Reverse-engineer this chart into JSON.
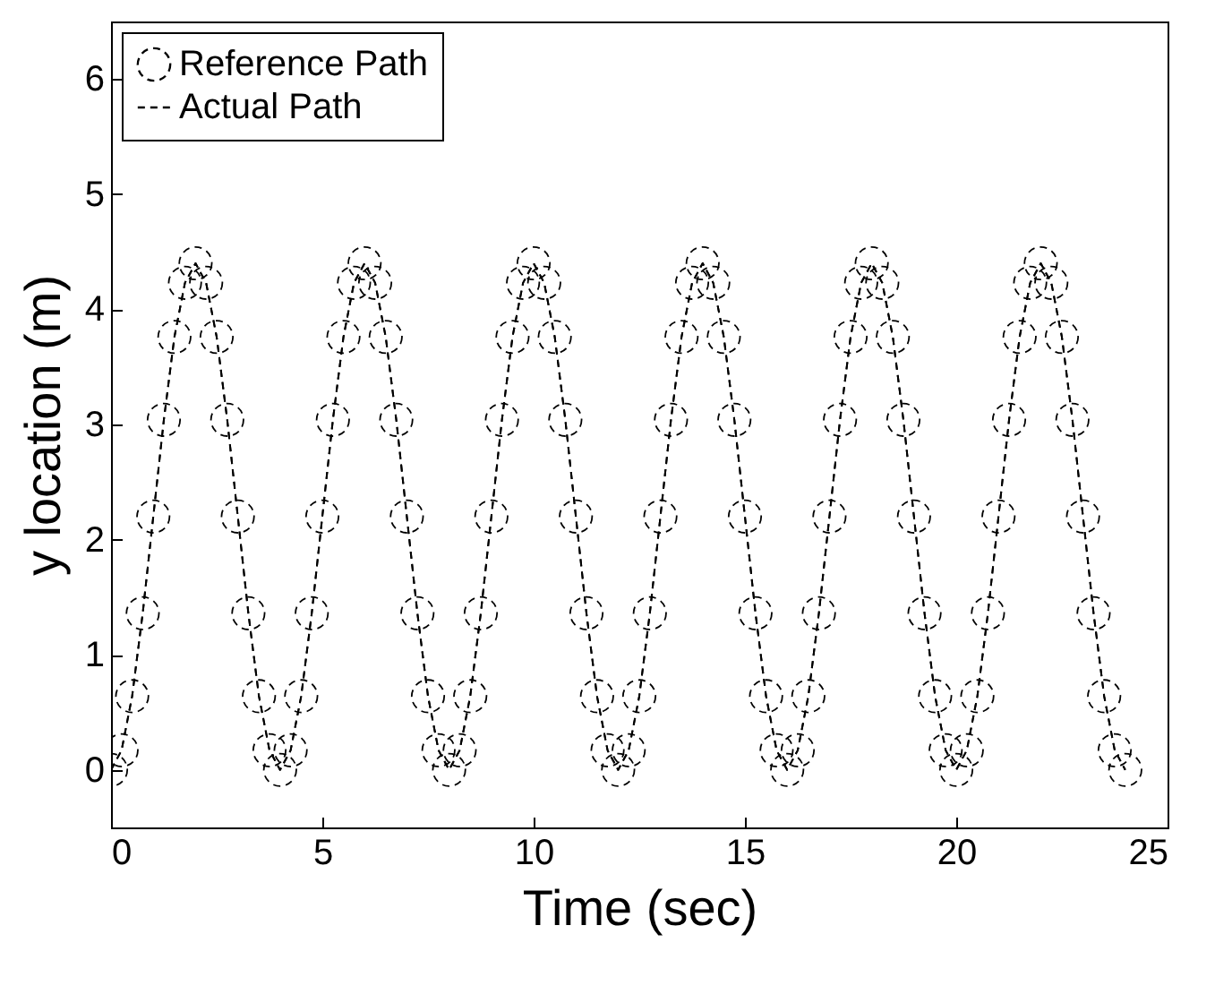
{
  "chart_data": {
    "type": "line",
    "xlabel": "Time (sec)",
    "ylabel": "y location (m)",
    "x": [
      0,
      0.25,
      0.5,
      0.75,
      1,
      1.25,
      1.5,
      1.75,
      2,
      2.25,
      2.5,
      2.75,
      3,
      3.25,
      3.5,
      3.75,
      4,
      4.25,
      4.5,
      4.75,
      5,
      5.25,
      5.5,
      5.75,
      6,
      6.25,
      6.5,
      6.75,
      7,
      7.25,
      7.5,
      7.75,
      8,
      8.25,
      8.5,
      8.75,
      9,
      9.25,
      9.5,
      9.75,
      10,
      10.25,
      10.5,
      10.75,
      11,
      11.25,
      11.5,
      11.75,
      12,
      12.25,
      12.5,
      12.75,
      13,
      13.25,
      13.5,
      13.75,
      14,
      14.25,
      14.5,
      14.75,
      15,
      15.25,
      15.5,
      15.75,
      16,
      16.25,
      16.5,
      16.75,
      17,
      17.25,
      17.5,
      17.75,
      18,
      18.25,
      18.5,
      18.75,
      19,
      19.25,
      19.5,
      19.75,
      20,
      20.25,
      20.5,
      20.75,
      21,
      21.25,
      21.5,
      21.75,
      22,
      22.25,
      22.5,
      22.75,
      23,
      23.25,
      23.5,
      23.75,
      24
    ],
    "series": [
      {
        "name": "Reference Path",
        "color": "#000000",
        "marker": "circle",
        "line_style": "dashed",
        "values": [
          0,
          0.17,
          0.64,
          1.36,
          2.2,
          3.04,
          3.76,
          4.23,
          4.4,
          4.23,
          3.76,
          3.04,
          2.2,
          1.36,
          0.64,
          0.17,
          0,
          0.17,
          0.64,
          1.36,
          2.2,
          3.04,
          3.76,
          4.23,
          4.4,
          4.23,
          3.76,
          3.04,
          2.2,
          1.36,
          0.64,
          0.17,
          0,
          0.17,
          0.64,
          1.36,
          2.2,
          3.04,
          3.76,
          4.23,
          4.4,
          4.23,
          3.76,
          3.04,
          2.2,
          1.36,
          0.64,
          0.17,
          0,
          0.17,
          0.64,
          1.36,
          2.2,
          3.04,
          3.76,
          4.23,
          4.4,
          4.23,
          3.76,
          3.04,
          2.2,
          1.36,
          0.64,
          0.17,
          0,
          0.17,
          0.64,
          1.36,
          2.2,
          3.04,
          3.76,
          4.23,
          4.4,
          4.23,
          3.76,
          3.04,
          2.2,
          1.36,
          0.64,
          0.17,
          0,
          0.17,
          0.64,
          1.36,
          2.2,
          3.04,
          3.76,
          4.23,
          4.4,
          4.23,
          3.76,
          3.04,
          2.2,
          1.36,
          0.64,
          0.17,
          0
        ]
      },
      {
        "name": "Actual Path",
        "color": "#000000",
        "marker": "none",
        "line_style": "dashed",
        "values": [
          0,
          0.17,
          0.64,
          1.36,
          2.2,
          3.04,
          3.76,
          4.23,
          4.4,
          4.23,
          3.76,
          3.04,
          2.2,
          1.36,
          0.64,
          0.17,
          0,
          0.17,
          0.64,
          1.36,
          2.2,
          3.04,
          3.76,
          4.23,
          4.4,
          4.23,
          3.76,
          3.04,
          2.2,
          1.36,
          0.64,
          0.17,
          0,
          0.17,
          0.64,
          1.36,
          2.2,
          3.04,
          3.76,
          4.23,
          4.4,
          4.23,
          3.76,
          3.04,
          2.2,
          1.36,
          0.64,
          0.17,
          0,
          0.17,
          0.64,
          1.36,
          2.2,
          3.04,
          3.76,
          4.23,
          4.4,
          4.23,
          3.76,
          3.04,
          2.2,
          1.36,
          0.64,
          0.17,
          0,
          0.17,
          0.64,
          1.36,
          2.2,
          3.04,
          3.76,
          4.23,
          4.4,
          4.23,
          3.76,
          3.04,
          2.2,
          1.36,
          0.64,
          0.17,
          0,
          0.17,
          0.64,
          1.36,
          2.2,
          3.04,
          3.76,
          4.23,
          4.4,
          4.23,
          3.76,
          3.04,
          2.2,
          1.36,
          0.64,
          0.17,
          0
        ]
      }
    ],
    "xlim": [
      0,
      25
    ],
    "xticks": [
      0,
      5,
      10,
      15,
      20,
      25
    ],
    "ylim": [
      -0.5,
      6.5
    ],
    "yticks": [
      0,
      1,
      2,
      3,
      4,
      5,
      6
    ],
    "grid": false,
    "legend": "top left"
  }
}
